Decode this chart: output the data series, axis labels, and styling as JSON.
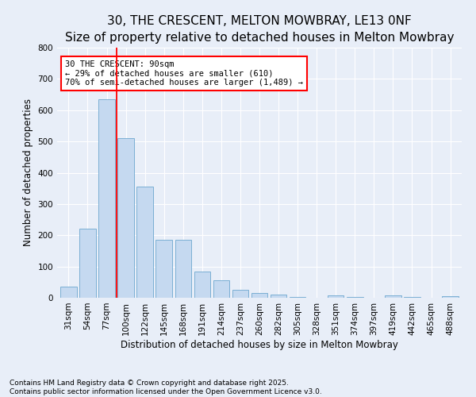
{
  "title": "30, THE CRESCENT, MELTON MOWBRAY, LE13 0NF",
  "subtitle": "Size of property relative to detached houses in Melton Mowbray",
  "xlabel": "Distribution of detached houses by size in Melton Mowbray",
  "ylabel": "Number of detached properties",
  "categories": [
    "31sqm",
    "54sqm",
    "77sqm",
    "100sqm",
    "122sqm",
    "145sqm",
    "168sqm",
    "191sqm",
    "214sqm",
    "237sqm",
    "260sqm",
    "282sqm",
    "305sqm",
    "328sqm",
    "351sqm",
    "374sqm",
    "397sqm",
    "419sqm",
    "442sqm",
    "465sqm",
    "488sqm"
  ],
  "values": [
    35,
    220,
    635,
    510,
    355,
    185,
    185,
    85,
    55,
    25,
    15,
    10,
    3,
    0,
    8,
    2,
    0,
    8,
    2,
    0,
    5
  ],
  "bar_color": "#c5d9f0",
  "bar_edge_color": "#7bafd4",
  "vline_color": "red",
  "vline_x_idx": 2.5,
  "annotation_text": "30 THE CRESCENT: 90sqm\n← 29% of detached houses are smaller (610)\n70% of semi-detached houses are larger (1,489) →",
  "annotation_box_color": "white",
  "annotation_box_edge": "red",
  "ylim": [
    0,
    800
  ],
  "yticks": [
    0,
    100,
    200,
    300,
    400,
    500,
    600,
    700,
    800
  ],
  "background_color": "#e8eef8",
  "grid_color": "#ffffff",
  "footer": "Contains HM Land Registry data © Crown copyright and database right 2025.\nContains public sector information licensed under the Open Government Licence v3.0.",
  "title_fontsize": 11,
  "xlabel_fontsize": 8.5,
  "ylabel_fontsize": 8.5,
  "tick_fontsize": 7.5,
  "footer_fontsize": 6.5
}
